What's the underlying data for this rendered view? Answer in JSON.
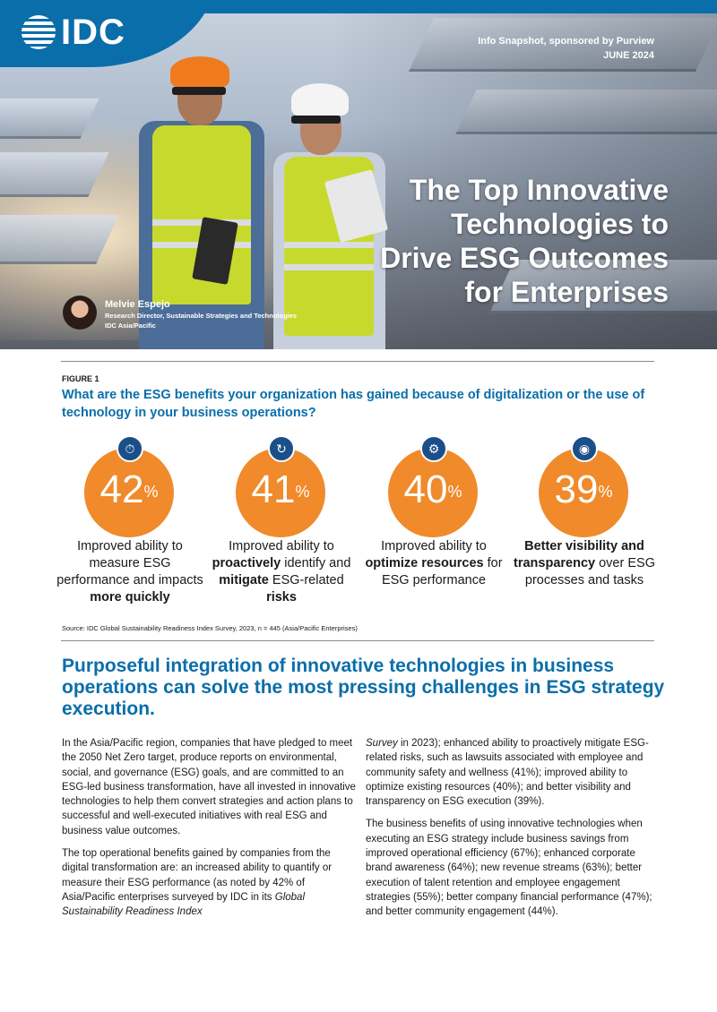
{
  "header": {
    "logo_text": "IDC",
    "sponsor_line": "Info Snapshot, sponsored by Purview",
    "date": "JUNE 2024"
  },
  "hero": {
    "title_lines": [
      "The Top Innovative",
      "Technologies to",
      "Drive ESG Outcomes",
      "for Enterprises"
    ],
    "author_name": "Melvie Espejo",
    "author_role": "Research Director, Sustainable Strategies and Technologies",
    "author_org": "IDC Asia/Pacific"
  },
  "figure": {
    "label": "FIGURE 1",
    "question": "What are the ESG benefits your organization has gained because of digitalization or the use of technology in your business operations?",
    "stats": [
      {
        "value": "42",
        "unit": "%",
        "icon": "gauge-icon",
        "parts": [
          {
            "t": "Improved ability to measure ESG performance and impacts ",
            "b": false
          },
          {
            "t": "more quickly",
            "b": true
          }
        ]
      },
      {
        "value": "41",
        "unit": "%",
        "icon": "shield-cycle-icon",
        "parts": [
          {
            "t": "Improved ability to ",
            "b": false
          },
          {
            "t": "proactively",
            "b": true
          },
          {
            "t": " identify and ",
            "b": false
          },
          {
            "t": "mitigate",
            "b": true
          },
          {
            "t": " ESG-related ",
            "b": false
          },
          {
            "t": "risks",
            "b": true
          }
        ]
      },
      {
        "value": "40",
        "unit": "%",
        "icon": "gear-people-icon",
        "parts": [
          {
            "t": "Improved ability to ",
            "b": false
          },
          {
            "t": "optimize resources",
            "b": true
          },
          {
            "t": " for ESG performance",
            "b": false
          }
        ]
      },
      {
        "value": "39",
        "unit": "%",
        "icon": "eye-icon",
        "parts": [
          {
            "t": "Better visibility and transparency",
            "b": true
          },
          {
            "t": " over ESG processes and tasks",
            "b": false
          }
        ]
      }
    ],
    "source": "Source: IDC Global Sustainability Readiness Index Survey, 2023, n = 445 (Asia/Pacific Enterprises)"
  },
  "body": {
    "headline": "Purposeful integration of innovative technologies in business operations can solve the most pressing challenges in ESG strategy execution.",
    "left_p1": "In the Asia/Pacific region, companies that have pledged to meet the 2050 Net Zero target, produce reports on environmental, social, and governance (ESG) goals, and are committed to an ESG-led business transformation, have all invested in innovative technologies to help them convert strategies and action plans to successful and well-executed initiatives with real ESG and business value outcomes.",
    "left_p2_a": "The top operational benefits gained by companies from the digital transformation are: an increased ability to quantify or measure their ESG performance (as noted by 42% of Asia/Pacific enterprises surveyed by IDC in its ",
    "left_p2_italic": "Global Sustainability Readiness Index",
    "right_p1_italic": "Survey",
    "right_p1_b": " in 2023); enhanced ability to proactively mitigate ESG-related risks, such as lawsuits associated with employee and community safety and wellness (41%); improved ability to optimize existing resources (40%); and better visibility and transparency on ESG execution (39%).",
    "right_p2": "The business benefits of using innovative technologies when executing an ESG strategy include business savings from improved operational efficiency (67%); enhanced corporate brand awareness (64%); new revenue streams (63%); better execution of talent retention and employee engagement strategies (55%); better company financial performance (47%); and better community engagement (44%)."
  },
  "colors": {
    "brand_blue": "#0a6eaa",
    "accent_orange": "#f08a2a",
    "icon_navy": "#1a4f8a"
  }
}
